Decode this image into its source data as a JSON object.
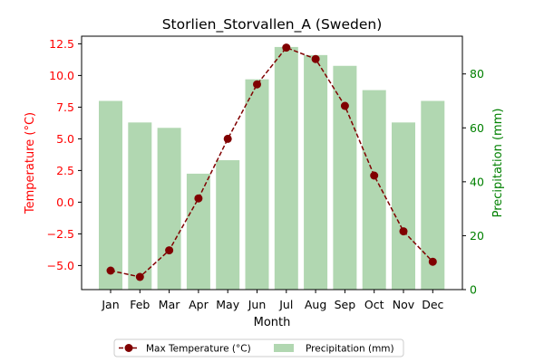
{
  "chart_data": {
    "type": "bar+line",
    "title": "Storlien_Storvallen_A (Sweden)",
    "xlabel": "Month",
    "categories": [
      "Jan",
      "Feb",
      "Mar",
      "Apr",
      "May",
      "Jun",
      "Jul",
      "Aug",
      "Sep",
      "Oct",
      "Nov",
      "Dec"
    ],
    "left_axis": {
      "label": "Temperature (°C)",
      "color": "#ff0000",
      "ylim": [
        -6.9,
        13.1
      ],
      "ticks": [
        -5.0,
        -2.5,
        0.0,
        2.5,
        5.0,
        7.5,
        10.0,
        12.5
      ],
      "tick_labels": [
        "−5.0",
        "−2.5",
        "0.0",
        "2.5",
        "5.0",
        "7.5",
        "10.0",
        "12.5"
      ]
    },
    "right_axis": {
      "label": "Precipitation (mm)",
      "color": "#008000",
      "ylim": [
        0,
        94
      ],
      "ticks": [
        0,
        20,
        40,
        60,
        80
      ],
      "tick_labels": [
        "0",
        "20",
        "40",
        "60",
        "80"
      ]
    },
    "series": [
      {
        "name": "Max Temperature (°C)",
        "type": "line",
        "axis": "left",
        "color": "#800000",
        "linestyle": "dashed",
        "marker": "circle",
        "values": [
          -5.4,
          -5.9,
          -3.8,
          0.3,
          5.0,
          9.3,
          12.2,
          11.3,
          7.6,
          2.1,
          -2.3,
          -4.7
        ]
      },
      {
        "name": "Precipitation (mm)",
        "type": "bar",
        "axis": "right",
        "color": "#b1d7b1",
        "values": [
          70,
          62,
          60,
          43,
          48,
          78,
          90,
          87,
          83,
          74,
          62,
          70
        ]
      }
    ],
    "legend": {
      "placement": "bottom-center",
      "columns": 2
    }
  }
}
